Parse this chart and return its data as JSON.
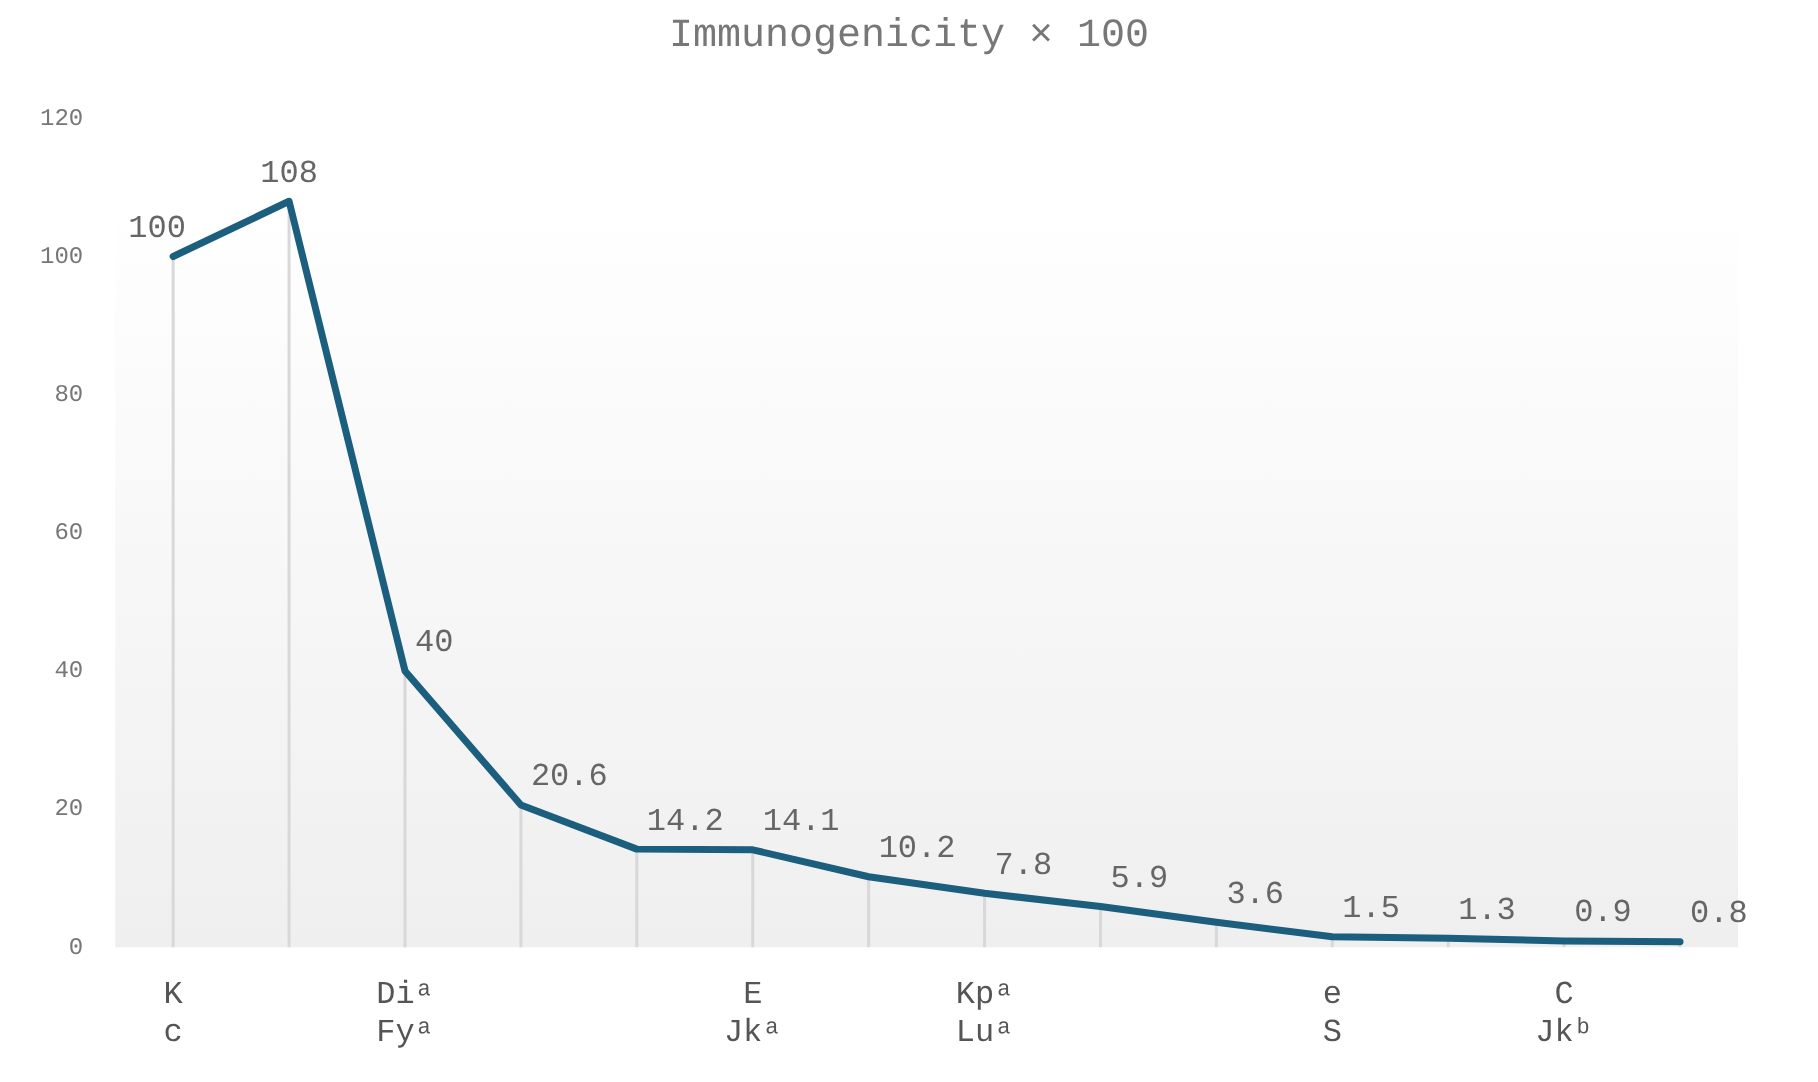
{
  "chart_data": {
    "type": "line",
    "title": "Immunogenicity × 100",
    "categories": [
      "K\nc",
      null,
      "Diᵃ\nFyᵃ",
      null,
      null,
      "E\nJkᵃ",
      null,
      "Kpᵃ\nLuᵃ",
      null,
      null,
      "e\nS",
      null,
      "C\nJkᵇ",
      null
    ],
    "series": [
      {
        "color": "#1b5e7e",
        "values": [
          100,
          108,
          40,
          20.6,
          14.2,
          14.1,
          10.2,
          7.8,
          5.9,
          3.6,
          1.5,
          1.3,
          0.9,
          0.8
        ]
      }
    ],
    "ylim": [
      0,
      120
    ],
    "yticks": [
      0,
      20,
      40,
      60,
      80,
      100,
      120
    ],
    "grid": "x",
    "legend": false,
    "marker": "none",
    "line_style": "solid",
    "data_labels": true
  }
}
